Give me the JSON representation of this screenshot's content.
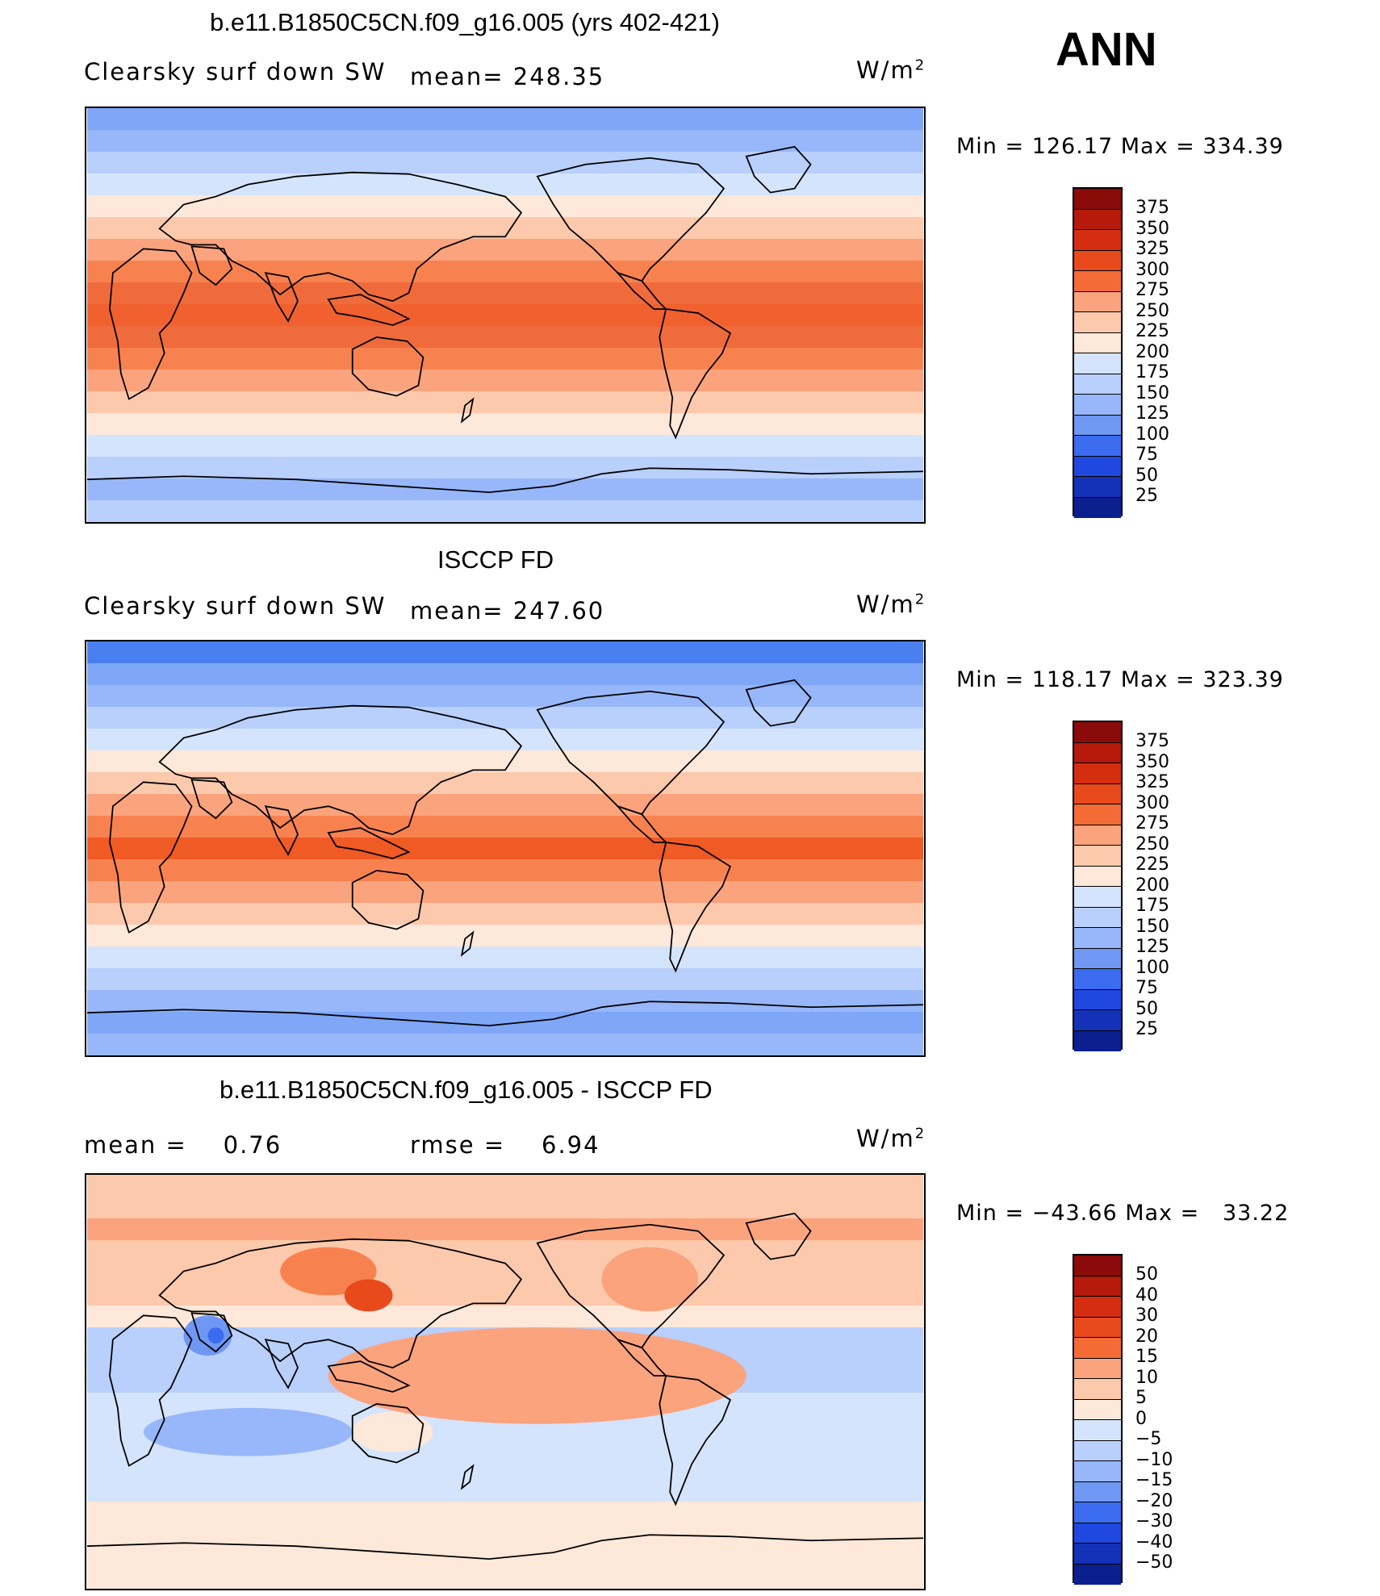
{
  "season": "ANN",
  "units": "W/m",
  "units_sup": "2",
  "panels": [
    {
      "title": "b.e11.B1850C5CN.f09_g16.005 (yrs 402-421)",
      "left_label": "Clearsky surf down SW",
      "mean_label": "mean= 248.35",
      "minmax": "Min = 126.17 Max = 334.39",
      "kind": "absolute",
      "zone_colors": [
        "#7fa6f7",
        "#97b7fa",
        "#b9cffc",
        "#d5e4fd",
        "#fde8d9",
        "#fcc9ac",
        "#fba37d",
        "#f8824f",
        "#f06b3c",
        "#f0612f",
        "#f06b3c",
        "#f8824f",
        "#fba37d",
        "#fcc9ac",
        "#fde8d9",
        "#d5e4fd",
        "#b9cffc",
        "#97b7fa",
        "#b9cffc"
      ]
    },
    {
      "title": "ISCCP FD",
      "left_label": "Clearsky surf down SW",
      "mean_label": "mean= 247.60",
      "minmax": "Min = 118.17 Max = 323.39",
      "kind": "absolute",
      "zone_colors": [
        "#4a7ff0",
        "#7fa6f7",
        "#97b7fa",
        "#b9cffc",
        "#d5e4fd",
        "#fde8d9",
        "#fcc9ac",
        "#fba37d",
        "#f8824f",
        "#f05a24",
        "#f8824f",
        "#fba37d",
        "#fcc9ac",
        "#fde8d9",
        "#d5e4fd",
        "#b9cffc",
        "#97b7fa",
        "#7fa6f7",
        "#97b7fa"
      ]
    },
    {
      "title": "b.e11.B1850C5CN.f09_g16.005 - ISCCP FD",
      "left_label": "mean =    0.76",
      "mean_label": "rmse =    6.94",
      "minmax": "Min = −43.66 Max =   33.22",
      "kind": "difference",
      "zone_colors": [
        "#fcc9ac",
        "#fcc9ac",
        "#fba37d",
        "#fcc9ac",
        "#fcc9ac",
        "#fcc9ac",
        "#fde8d9",
        "#b9cffc",
        "#b9cffc",
        "#b9cffc",
        "#d5e4fd",
        "#d5e4fd",
        "#d5e4fd",
        "#d5e4fd",
        "#d5e4fd",
        "#fde8d9",
        "#fde8d9",
        "#fde8d9",
        "#fde8d9"
      ]
    }
  ],
  "colorbar_abs": {
    "labels": [
      "375",
      "350",
      "325",
      "300",
      "275",
      "250",
      "225",
      "200",
      "175",
      "150",
      "125",
      "100",
      "75",
      "50",
      "25"
    ],
    "colors": [
      "#8b0a0a",
      "#b51a0a",
      "#d52d10",
      "#e84a1c",
      "#f56b35",
      "#fba37d",
      "#fcc9ac",
      "#fde8d9",
      "#d5e4fd",
      "#b9cffc",
      "#97b7fa",
      "#6f97f4",
      "#3b6cf0",
      "#1e48e0",
      "#1432b8",
      "#0c1f8f"
    ]
  },
  "colorbar_diff": {
    "labels": [
      "50",
      "40",
      "30",
      "20",
      "15",
      "10",
      "5",
      "0",
      "−5",
      "−10",
      "−15",
      "−20",
      "−30",
      "−40",
      "−50"
    ],
    "colors": [
      "#8b0a0a",
      "#b51a0a",
      "#d52d10",
      "#e84a1c",
      "#f56b35",
      "#fba37d",
      "#fcc9ac",
      "#fde8d9",
      "#d5e4fd",
      "#b9cffc",
      "#97b7fa",
      "#6f97f4",
      "#3b6cf0",
      "#1e48e0",
      "#1432b8",
      "#0c1f8f"
    ]
  }
}
